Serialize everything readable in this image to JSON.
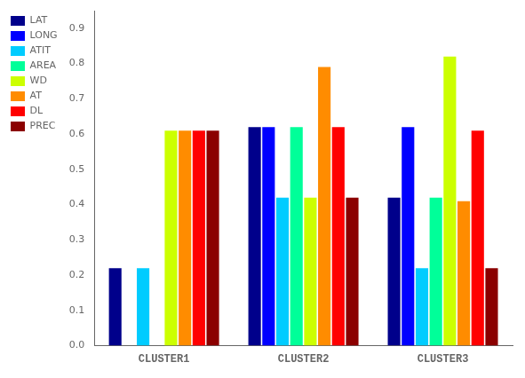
{
  "chart_data": {
    "type": "bar",
    "categories": [
      "CLUSTER1",
      "CLUSTER2",
      "CLUSTER3"
    ],
    "series": [
      {
        "name": "LAT",
        "color": "#00008B",
        "values": [
          0.22,
          0.62,
          0.42
        ]
      },
      {
        "name": "LONG",
        "color": "#0000FF",
        "values": [
          0.0,
          0.62,
          0.62
        ]
      },
      {
        "name": "ATIT",
        "color": "#00CCFF",
        "values": [
          0.22,
          0.42,
          0.22
        ]
      },
      {
        "name": "AREA",
        "color": "#00FF99",
        "values": [
          0.0,
          0.62,
          0.42
        ]
      },
      {
        "name": "WD",
        "color": "#CCFF00",
        "values": [
          0.61,
          0.42,
          0.82
        ]
      },
      {
        "name": "AT",
        "color": "#FF8C00",
        "values": [
          0.61,
          0.79,
          0.41
        ]
      },
      {
        "name": "DL",
        "color": "#FF0000",
        "values": [
          0.61,
          0.62,
          0.61
        ]
      },
      {
        "name": "PREC",
        "color": "#8B0000",
        "values": [
          0.61,
          0.42,
          0.22
        ]
      }
    ],
    "ylim": [
      0,
      0.95
    ],
    "yticks": [
      {
        "value": 0,
        "label": "0.0"
      },
      0.1,
      0.2,
      0.3,
      0.4,
      0.5,
      0.6,
      0.7,
      0.8,
      0.9
    ],
    "grid": false,
    "legend": "upper left"
  }
}
